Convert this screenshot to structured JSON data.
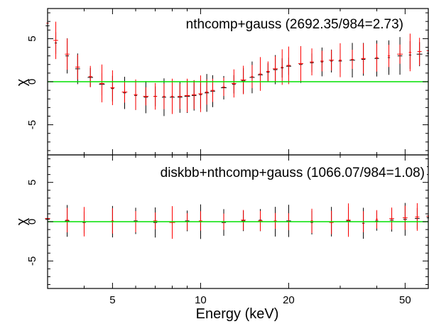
{
  "chart_data": [
    {
      "type": "scatter",
      "title": "nthcomp+gauss (2692.35/984=2.73)",
      "xlabel": "",
      "ylabel": "χ",
      "xscale": "log",
      "xlim": [
        3,
        60
      ],
      "ylim": [
        -8.5,
        8.5
      ],
      "xticks": [
        5,
        10,
        20,
        50
      ],
      "yticks": [
        -5,
        0,
        5
      ],
      "reference_line": {
        "y": 0,
        "color": "#00e000"
      },
      "series": [
        {
          "color": "#000000",
          "x": [
            3.0,
            3.2,
            3.5,
            3.8,
            4.2,
            4.6,
            5.0,
            5.5,
            6.0,
            6.5,
            7.0,
            7.5,
            8.0,
            8.5,
            9.0,
            9.5,
            10.0,
            10.5,
            11.0,
            12.0,
            13.0,
            14.0,
            15.0,
            16.0,
            17.0,
            18.0,
            19.0,
            20.0,
            22.0,
            24.0,
            26.0,
            28.0,
            30.0,
            33.0,
            36.0,
            40.0,
            44.0,
            48.0,
            52.0,
            56.0,
            60.0
          ],
          "y": [
            6.5,
            4.5,
            3.0,
            1.5,
            0.5,
            -0.3,
            -0.8,
            -1.3,
            -1.6,
            -1.8,
            -1.7,
            -1.8,
            -1.8,
            -1.8,
            -1.7,
            -1.6,
            -1.5,
            -1.3,
            -1.1,
            -0.7,
            -0.3,
            0.1,
            0.5,
            0.8,
            1.1,
            1.4,
            1.6,
            1.8,
            2.0,
            2.2,
            2.3,
            2.4,
            2.4,
            2.5,
            2.6,
            2.7,
            2.8,
            3.0,
            3.1,
            3.2,
            3.3
          ]
        },
        {
          "color": "#ff0000",
          "x": [
            3.0,
            3.2,
            3.5,
            3.8,
            4.2,
            4.6,
            5.0,
            5.5,
            6.0,
            6.5,
            7.0,
            7.5,
            8.0,
            8.5,
            9.0,
            9.5,
            10.0,
            10.5,
            11.0,
            12.0,
            13.0,
            14.0,
            15.0,
            16.0,
            17.0,
            18.0,
            19.0,
            20.0,
            22.0,
            24.0,
            26.0,
            28.0,
            30.0,
            33.0,
            36.0,
            40.0,
            44.0,
            48.0,
            52.0,
            56.0,
            60.0
          ],
          "y": [
            6.8,
            4.8,
            3.2,
            1.7,
            0.6,
            -0.2,
            -0.7,
            -1.2,
            -1.5,
            -1.7,
            -1.7,
            -1.7,
            -1.7,
            -1.7,
            -1.6,
            -1.5,
            -1.4,
            -1.2,
            -1.0,
            -0.6,
            -0.2,
            0.2,
            0.6,
            0.9,
            1.2,
            1.5,
            1.7,
            1.9,
            2.1,
            2.3,
            2.4,
            2.5,
            2.5,
            2.6,
            2.7,
            2.8,
            3.0,
            3.2,
            3.4,
            3.5,
            3.6
          ]
        }
      ]
    },
    {
      "type": "scatter",
      "title": "diskbb+nthcomp+gauss (1066.07/984=1.08)",
      "xlabel": "Energy (keV)",
      "ylabel": "χ",
      "xscale": "log",
      "xlim": [
        3,
        60
      ],
      "ylim": [
        -8.5,
        8.5
      ],
      "xticks": [
        5,
        10,
        20,
        50
      ],
      "yticks": [
        -5,
        0,
        5
      ],
      "reference_line": {
        "y": 0,
        "color": "#00e000"
      },
      "series": [
        {
          "color": "#000000",
          "x": [
            3.0,
            3.5,
            4.0,
            5.0,
            6.0,
            7.0,
            8.0,
            9.0,
            10.0,
            12.0,
            14.0,
            16.0,
            18.0,
            20.0,
            24.0,
            28.0,
            32.0,
            36.0,
            40.0,
            45.0,
            50.0,
            55.0,
            60.0
          ],
          "y": [
            0.3,
            0.1,
            -0.1,
            0.0,
            0.1,
            -0.1,
            0.0,
            0.1,
            0.0,
            -0.1,
            0.1,
            0.2,
            0.0,
            0.1,
            -0.1,
            0.0,
            0.1,
            -0.2,
            0.1,
            0.2,
            0.3,
            0.4,
            0.5
          ]
        },
        {
          "color": "#ff0000",
          "x": [
            3.0,
            3.5,
            4.0,
            5.0,
            6.0,
            7.0,
            8.0,
            9.0,
            10.0,
            12.0,
            14.0,
            16.0,
            18.0,
            20.0,
            24.0,
            28.0,
            32.0,
            36.0,
            40.0,
            45.0,
            50.0,
            55.0,
            60.0
          ],
          "y": [
            0.4,
            0.2,
            0.0,
            0.1,
            0.0,
            0.1,
            -0.1,
            0.0,
            0.1,
            0.0,
            0.2,
            0.1,
            0.1,
            0.0,
            0.1,
            -0.1,
            0.2,
            0.0,
            0.3,
            0.4,
            0.5,
            0.6,
            0.7
          ]
        }
      ]
    }
  ]
}
